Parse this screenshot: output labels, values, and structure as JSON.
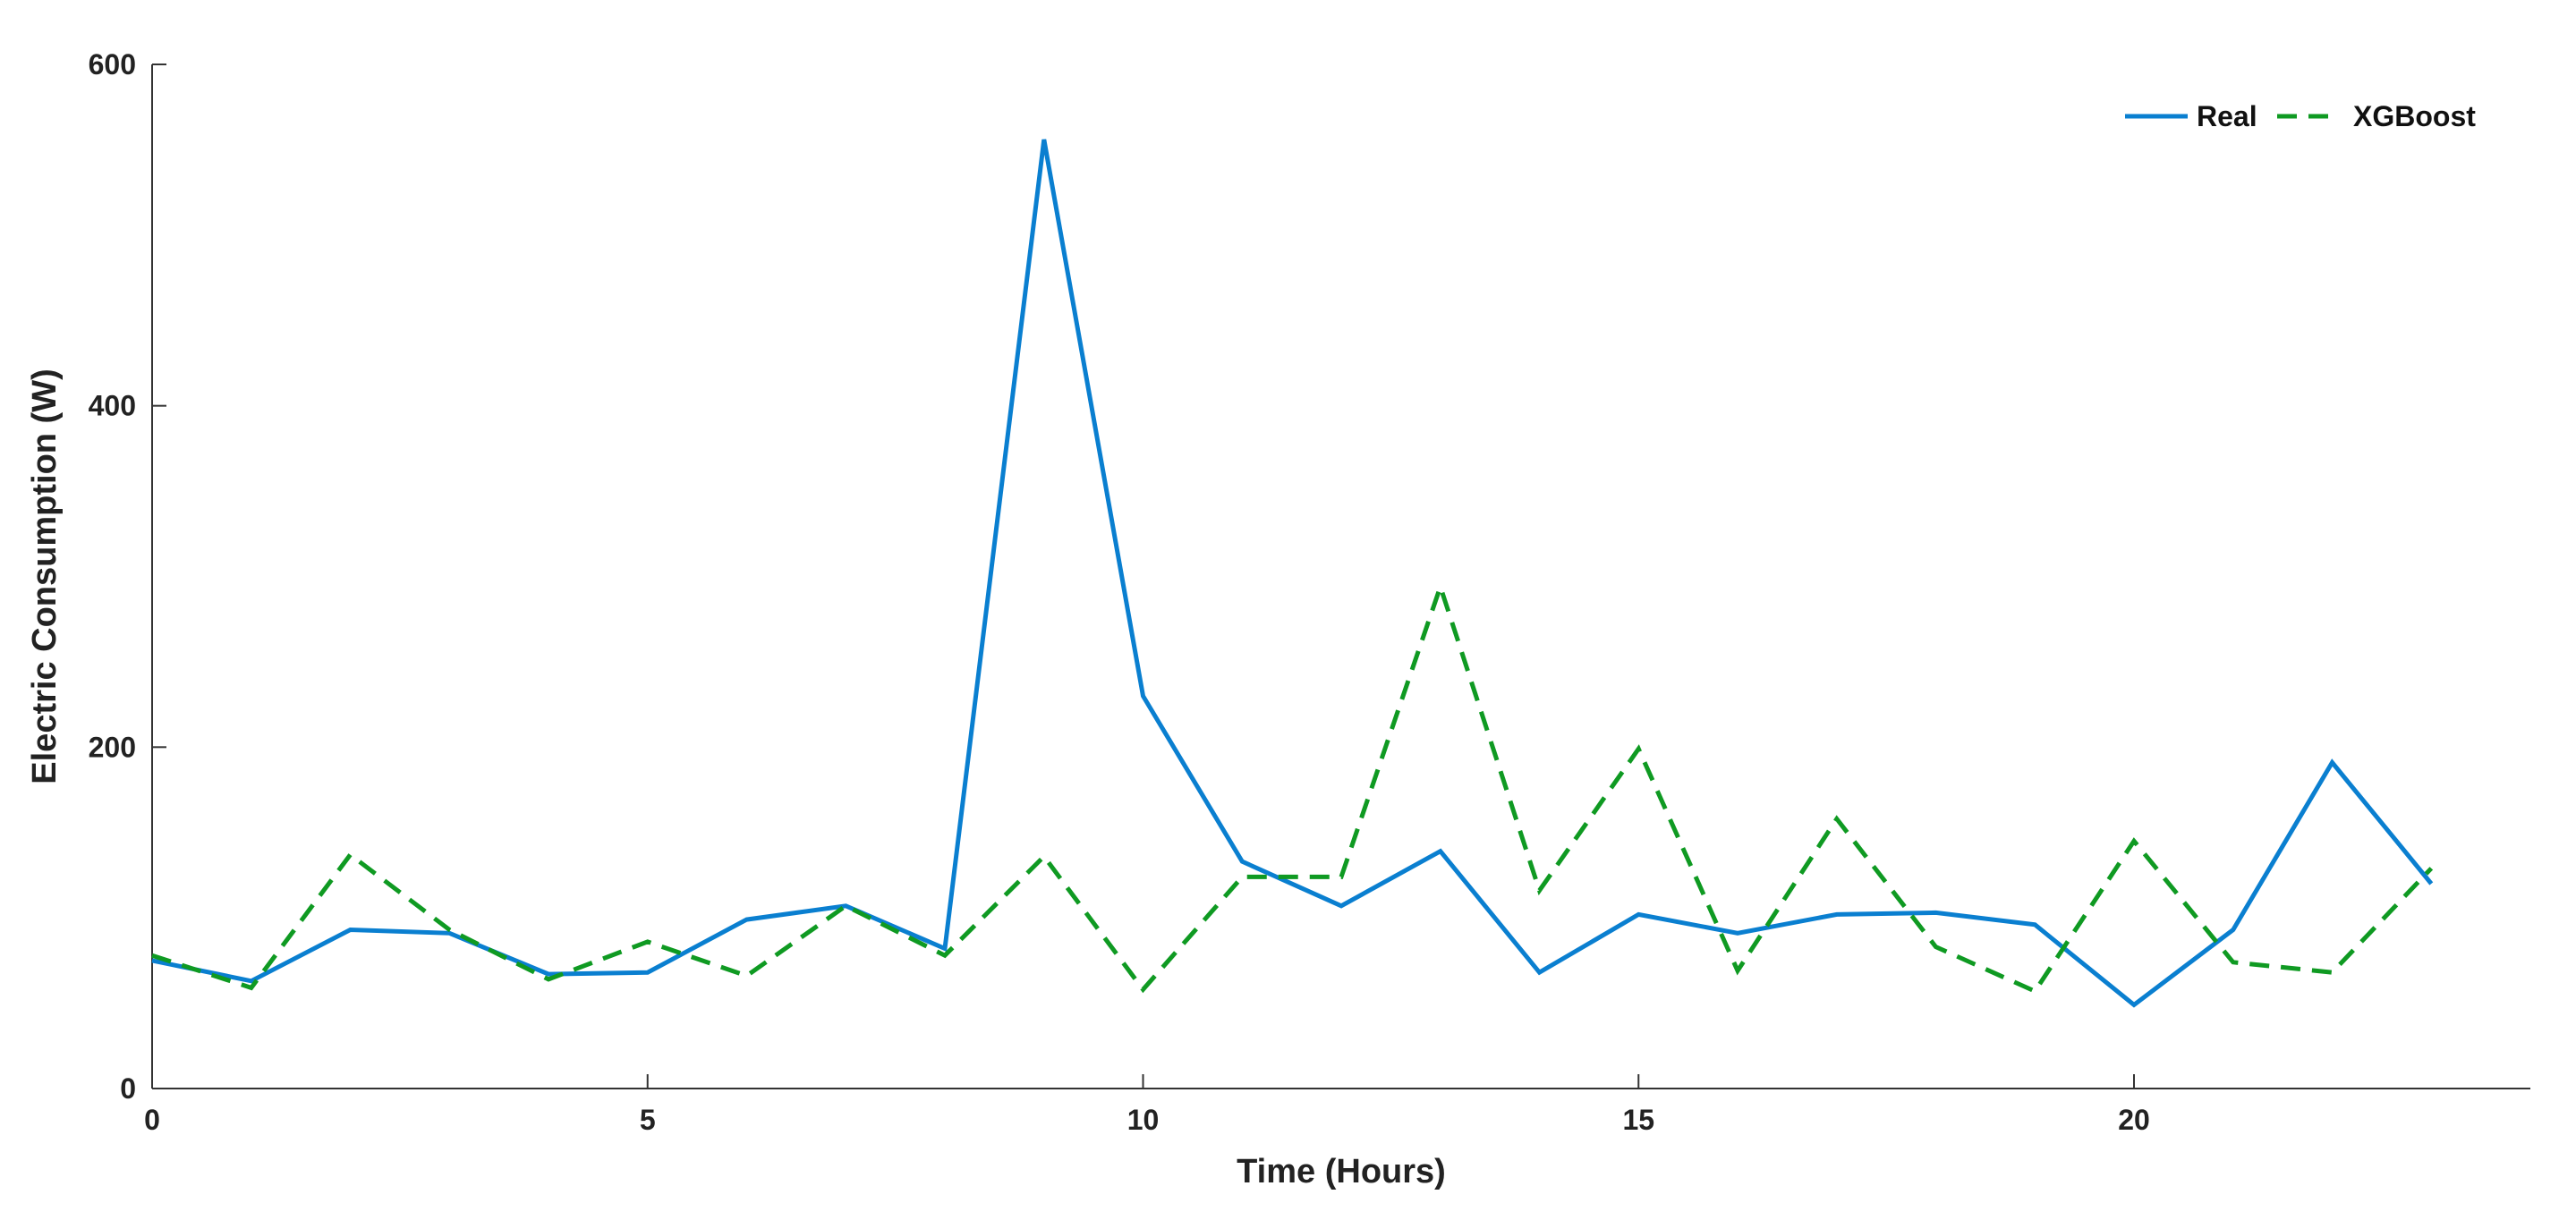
{
  "chart_data": {
    "type": "line",
    "xlabel": "Time (Hours)",
    "ylabel": "Electric Consumption (W)",
    "xlim": [
      0,
      24
    ],
    "ylim": [
      0,
      600
    ],
    "xticks": [
      0,
      5,
      10,
      15,
      20
    ],
    "yticks": [
      0,
      200,
      400,
      600
    ],
    "grid": false,
    "legend_position": "top-right",
    "x": [
      0,
      1,
      2,
      3,
      4,
      5,
      6,
      7,
      8,
      9,
      10,
      11,
      12,
      13,
      14,
      15,
      16,
      17,
      18,
      19,
      20,
      21,
      22,
      23
    ],
    "series": [
      {
        "name": "Real",
        "color": "#0a7fd0",
        "dash": "solid",
        "values": [
          75,
          63,
          93,
          91,
          67,
          68,
          99,
          107,
          82,
          556,
          230,
          133,
          107,
          139,
          68,
          102,
          91,
          102,
          103,
          96,
          49,
          93,
          191,
          120
        ]
      },
      {
        "name": "XGBoost",
        "color": "#0f9a22",
        "dash": "dashed",
        "values": [
          78,
          59,
          137,
          93,
          64,
          86,
          66,
          107,
          78,
          136,
          58,
          124,
          124,
          294,
          116,
          199,
          69,
          158,
          83,
          57,
          145,
          74,
          68,
          129
        ]
      }
    ]
  }
}
